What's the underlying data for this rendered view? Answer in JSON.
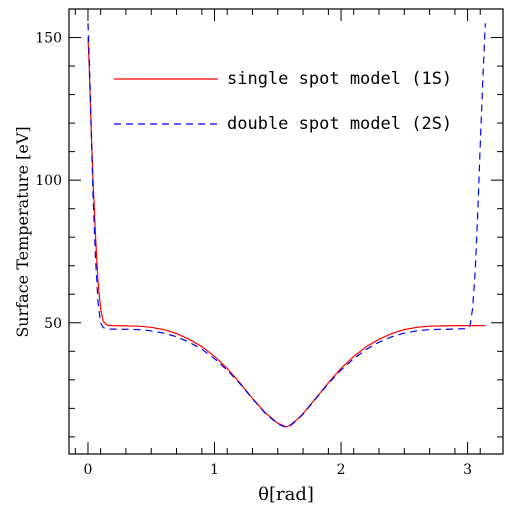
{
  "chart_data": {
    "type": "line",
    "title": "",
    "xlabel": "θ[rad]",
    "ylabel": "Surface Temperature [eV]",
    "xlim": [
      -0.15,
      3.28
    ],
    "ylim": [
      4,
      160
    ],
    "xticks": [
      0,
      1,
      2,
      3
    ],
    "yticks": [
      50,
      100,
      150
    ],
    "grid": false,
    "legend_position": "top-center",
    "series": [
      {
        "name": "single spot model (1S)",
        "color": "#ff0000",
        "dash": "solid",
        "x": [
          0.0,
          0.01,
          0.02,
          0.04,
          0.06,
          0.08,
          0.1,
          0.12,
          0.15,
          0.2,
          0.3,
          0.4,
          0.5,
          0.6,
          0.7,
          0.8,
          0.9,
          1.0,
          1.1,
          1.2,
          1.3,
          1.4,
          1.5,
          1.55,
          1.5708,
          1.6,
          1.65,
          1.7,
          1.8,
          1.9,
          2.0,
          2.1,
          2.2,
          2.3,
          2.4,
          2.5,
          2.6,
          2.7,
          2.8,
          2.9,
          3.0,
          3.1,
          3.14
        ],
        "y": [
          150,
          140,
          125,
          100,
          80,
          64,
          55,
          50.5,
          49.2,
          49.0,
          48.9,
          48.8,
          48.4,
          47.6,
          46.2,
          44.2,
          41.6,
          38.2,
          34.0,
          29.0,
          23.5,
          18.5,
          14.8,
          13.8,
          13.5,
          14.2,
          16.0,
          18.2,
          23.5,
          29.0,
          34.0,
          38.2,
          41.6,
          44.2,
          46.2,
          47.6,
          48.4,
          48.8,
          48.9,
          49.0,
          49.0,
          49.0,
          49.0
        ]
      },
      {
        "name": "double spot model (2S)",
        "color": "#0000ff",
        "dash": "dashed",
        "x": [
          0.0,
          0.01,
          0.02,
          0.04,
          0.06,
          0.08,
          0.1,
          0.12,
          0.15,
          0.2,
          0.3,
          0.4,
          0.5,
          0.6,
          0.7,
          0.8,
          0.9,
          1.0,
          1.1,
          1.2,
          1.3,
          1.4,
          1.5,
          1.55,
          1.5708,
          1.6,
          1.65,
          1.7,
          1.8,
          1.9,
          2.0,
          2.1,
          2.2,
          2.3,
          2.4,
          2.5,
          2.6,
          2.7,
          2.8,
          2.9,
          3.0,
          3.02,
          3.04,
          3.06,
          3.08,
          3.1,
          3.12,
          3.14
        ],
        "y": [
          155,
          143,
          128,
          95,
          72,
          57,
          50,
          48.3,
          47.8,
          47.8,
          47.7,
          47.6,
          47.2,
          46.4,
          45.1,
          43.2,
          40.7,
          37.4,
          33.4,
          28.7,
          23.4,
          18.3,
          14.6,
          13.6,
          13.3,
          14.0,
          15.8,
          18.0,
          23.3,
          28.7,
          33.4,
          37.4,
          40.7,
          43.2,
          45.1,
          46.4,
          47.2,
          47.6,
          47.7,
          47.8,
          48.0,
          49.0,
          55,
          68,
          88,
          112,
          135,
          155
        ]
      }
    ]
  }
}
